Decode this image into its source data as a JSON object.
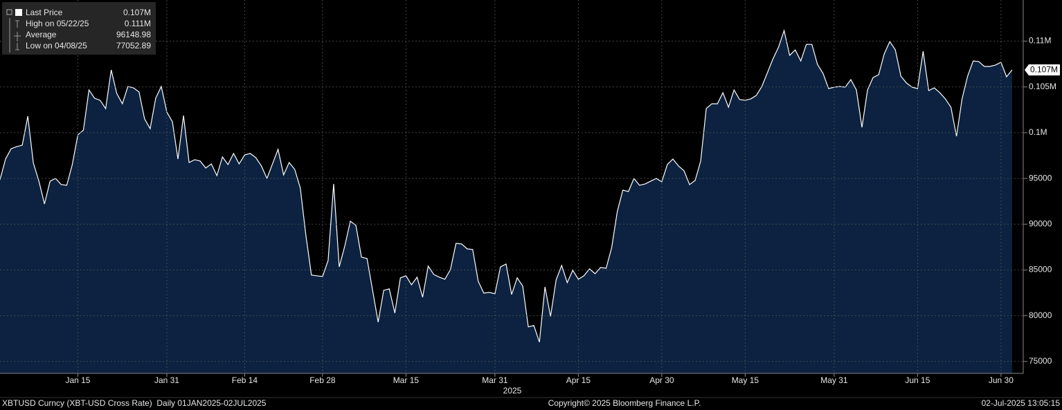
{
  "chart_data": {
    "type": "area",
    "color": "#ffffff",
    "fill": "#0c2240",
    "grid": true,
    "legend": {
      "position": "top-left",
      "items": [
        {
          "name": "Last Price",
          "value": {
            "value": 106860,
            "label": "0.107M"
          }
        },
        {
          "name": "High on 05/22/25",
          "value": {
            "value": 111160,
            "label": "0.111M"
          }
        },
        {
          "name": "Average",
          "value": 96148.98
        },
        {
          "name": "Low on 04/08/25",
          "value": 77052.89
        }
      ]
    },
    "x": [
      "2025-01-01",
      "2025-01-02",
      "2025-01-03",
      "2025-01-04",
      "2025-01-05",
      "2025-01-06",
      "2025-01-07",
      "2025-01-08",
      "2025-01-09",
      "2025-01-10",
      "2025-01-11",
      "2025-01-12",
      "2025-01-13",
      "2025-01-14",
      "2025-01-15",
      "2025-01-16",
      "2025-01-17",
      "2025-01-18",
      "2025-01-19",
      "2025-01-20",
      "2025-01-21",
      "2025-01-22",
      "2025-01-23",
      "2025-01-24",
      "2025-01-25",
      "2025-01-26",
      "2025-01-27",
      "2025-01-28",
      "2025-01-29",
      "2025-01-30",
      "2025-01-31",
      "2025-02-01",
      "2025-02-02",
      "2025-02-03",
      "2025-02-04",
      "2025-02-05",
      "2025-02-06",
      "2025-02-07",
      "2025-02-08",
      "2025-02-09",
      "2025-02-10",
      "2025-02-11",
      "2025-02-12",
      "2025-02-13",
      "2025-02-14",
      "2025-02-15",
      "2025-02-16",
      "2025-02-17",
      "2025-02-18",
      "2025-02-19",
      "2025-02-20",
      "2025-02-21",
      "2025-02-22",
      "2025-02-23",
      "2025-02-24",
      "2025-02-25",
      "2025-02-26",
      "2025-02-27",
      "2025-02-28",
      "2025-03-01",
      "2025-03-02",
      "2025-03-03",
      "2025-03-04",
      "2025-03-05",
      "2025-03-06",
      "2025-03-07",
      "2025-03-08",
      "2025-03-09",
      "2025-03-10",
      "2025-03-11",
      "2025-03-12",
      "2025-03-13",
      "2025-03-14",
      "2025-03-15",
      "2025-03-16",
      "2025-03-17",
      "2025-03-18",
      "2025-03-19",
      "2025-03-20",
      "2025-03-21",
      "2025-03-22",
      "2025-03-23",
      "2025-03-24",
      "2025-03-25",
      "2025-03-26",
      "2025-03-27",
      "2025-03-28",
      "2025-03-29",
      "2025-03-30",
      "2025-03-31",
      "2025-04-01",
      "2025-04-02",
      "2025-04-03",
      "2025-04-04",
      "2025-04-05",
      "2025-04-06",
      "2025-04-07",
      "2025-04-08",
      "2025-04-09",
      "2025-04-10",
      "2025-04-11",
      "2025-04-12",
      "2025-04-13",
      "2025-04-14",
      "2025-04-15",
      "2025-04-16",
      "2025-04-17",
      "2025-04-18",
      "2025-04-19",
      "2025-04-20",
      "2025-04-21",
      "2025-04-22",
      "2025-04-23",
      "2025-04-24",
      "2025-04-25",
      "2025-04-26",
      "2025-04-27",
      "2025-04-28",
      "2025-04-29",
      "2025-04-30",
      "2025-05-01",
      "2025-05-02",
      "2025-05-03",
      "2025-05-04",
      "2025-05-05",
      "2025-05-06",
      "2025-05-07",
      "2025-05-08",
      "2025-05-09",
      "2025-05-10",
      "2025-05-11",
      "2025-05-12",
      "2025-05-13",
      "2025-05-14",
      "2025-05-15",
      "2025-05-16",
      "2025-05-17",
      "2025-05-18",
      "2025-05-19",
      "2025-05-20",
      "2025-05-21",
      "2025-05-22",
      "2025-05-23",
      "2025-05-24",
      "2025-05-25",
      "2025-05-26",
      "2025-05-27",
      "2025-05-28",
      "2025-05-29",
      "2025-05-30",
      "2025-05-31",
      "2025-06-01",
      "2025-06-02",
      "2025-06-03",
      "2025-06-04",
      "2025-06-05",
      "2025-06-06",
      "2025-06-07",
      "2025-06-08",
      "2025-06-09",
      "2025-06-10",
      "2025-06-11",
      "2025-06-12",
      "2025-06-13",
      "2025-06-14",
      "2025-06-15",
      "2025-06-16",
      "2025-06-17",
      "2025-06-18",
      "2025-06-19",
      "2025-06-20",
      "2025-06-21",
      "2025-06-22",
      "2025-06-23",
      "2025-06-24",
      "2025-06-25",
      "2025-06-26",
      "2025-06-27",
      "2025-06-28",
      "2025-06-29",
      "2025-06-30",
      "2025-07-01",
      "2025-07-02"
    ],
    "series": [
      {
        "name": "Last Price",
        "color": "#ffffff",
        "values": [
          94860,
          97120,
          98250,
          98480,
          98630,
          101800,
          96670,
          94700,
          92210,
          94700,
          95000,
          94330,
          94250,
          96520,
          99760,
          100290,
          104670,
          103770,
          103540,
          102630,
          106860,
          104290,
          103160,
          105050,
          104900,
          104450,
          101500,
          100440,
          103770,
          105050,
          102260,
          101200,
          97120,
          101880,
          96740,
          97050,
          96900,
          96140,
          96590,
          95310,
          97350,
          96520,
          97730,
          96590,
          97570,
          97730,
          97270,
          96370,
          95000,
          96590,
          98180,
          95390,
          96740,
          95990,
          93950,
          88820,
          84440,
          84360,
          84290,
          86020,
          94400,
          85340,
          87610,
          90330,
          89870,
          86400,
          86250,
          82780,
          79300,
          82780,
          82930,
          80290,
          84140,
          84360,
          83380,
          84210,
          82020,
          85420,
          84510,
          84210,
          83980,
          85040,
          87910,
          87840,
          87310,
          87230,
          83760,
          82470,
          82550,
          82400,
          85340,
          85650,
          82320,
          84140,
          83230,
          78780,
          78930,
          77110,
          83150,
          79910,
          83910,
          85490,
          83610,
          84970,
          83980,
          84360,
          85120,
          84590,
          85270,
          85190,
          87460,
          91380,
          93720,
          93570,
          95000,
          94250,
          94400,
          94700,
          95000,
          94630,
          96520,
          97120,
          96370,
          95840,
          94330,
          94780,
          96900,
          102630,
          103160,
          103160,
          104370,
          102780,
          104670,
          103620,
          103540,
          103690,
          104070,
          105050,
          106560,
          108070,
          109350,
          111160,
          108450,
          109050,
          107840,
          109650,
          109650,
          107460,
          106480,
          104820,
          104970,
          105050,
          104970,
          105800,
          104670,
          100590,
          104670,
          106030,
          106330,
          108600,
          109960,
          109050,
          106180,
          105430,
          104970,
          104820,
          108900,
          104600,
          104900,
          104370,
          103690,
          102780,
          99610,
          103690,
          106180,
          107840,
          107770,
          107240,
          107240,
          107390,
          107690,
          106110,
          106860
        ]
      }
    ],
    "xlim": [
      "2025-01-01",
      "2025-07-04"
    ],
    "xticks": [
      {
        "value": "2025-01-15",
        "label": "Jan 15"
      },
      {
        "value": "2025-01-31",
        "label": "Jan 31"
      },
      {
        "value": "2025-02-14",
        "label": "Feb 14"
      },
      {
        "value": "2025-02-28",
        "label": "Feb 28"
      },
      {
        "value": "2025-03-15",
        "label": "Mar 15"
      },
      {
        "value": "2025-03-31",
        "label": "Mar 31"
      },
      {
        "value": "2025-04-15",
        "label": "Apr 15"
      },
      {
        "value": "2025-04-30",
        "label": "Apr 30"
      },
      {
        "value": "2025-05-15",
        "label": "May 15"
      },
      {
        "value": "2025-05-31",
        "label": "May 31"
      },
      {
        "value": "2025-06-15",
        "label": "Jun 15"
      },
      {
        "value": "2025-06-30",
        "label": "Jun 30"
      }
    ],
    "year_label": "2025",
    "ylim": [
      73700,
      114500
    ],
    "yticks": [
      75000,
      80000,
      85000,
      90000,
      95000,
      {
        "value": 100000,
        "label": "0.1M"
      },
      {
        "value": 105000,
        "label": "0.105M"
      },
      {
        "value": 110000,
        "label": "0.11M"
      }
    ],
    "footer": {
      "left": "XBTUSD Curncy (XBT-USD Cross Rate)  Daily 01JAN2025-02JUL2025",
      "center": "Copyright© 2025 Bloomberg Finance L.P.",
      "right": "02-Jul-2025 13:05:15"
    }
  }
}
